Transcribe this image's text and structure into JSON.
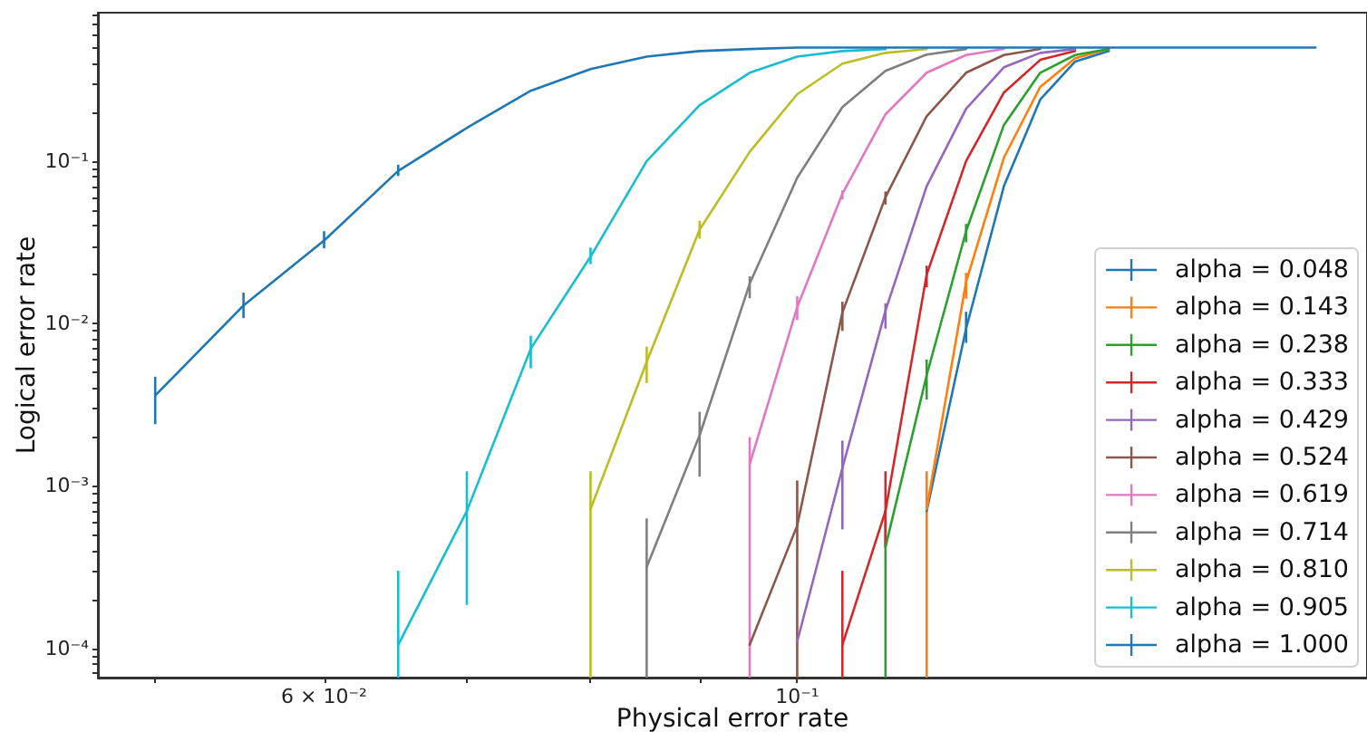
{
  "chart_data": {
    "type": "line",
    "xlabel": "Physical error rate",
    "ylabel": "Logical error rate",
    "log": "xy",
    "legend": "bottom right",
    "marker": "none",
    "line_style": "solid",
    "xlim": [
      0.047,
      0.185
    ],
    "ylim": [
      6.6e-05,
      0.82
    ],
    "xticks": [
      {
        "value": 0.05,
        "label": null
      },
      {
        "value": 0.06,
        "label": "6 × 10⁻²"
      },
      {
        "value": 0.07,
        "label": null
      },
      {
        "value": 0.08,
        "label": null
      },
      {
        "value": 0.09,
        "label": null
      },
      {
        "value": 0.1,
        "label": "10⁻¹"
      }
    ],
    "yticks": [
      {
        "value": 7e-05,
        "label": null
      },
      {
        "value": 8e-05,
        "label": null
      },
      {
        "value": 9e-05,
        "label": null
      },
      {
        "value": 0.0001,
        "label": "10⁻⁴"
      },
      {
        "value": 0.0002,
        "label": null
      },
      {
        "value": 0.0003,
        "label": null
      },
      {
        "value": 0.0004,
        "label": null
      },
      {
        "value": 0.0005,
        "label": null
      },
      {
        "value": 0.0006,
        "label": null
      },
      {
        "value": 0.0007,
        "label": null
      },
      {
        "value": 0.0008,
        "label": null
      },
      {
        "value": 0.0009,
        "label": null
      },
      {
        "value": 0.001,
        "label": "10⁻³"
      },
      {
        "value": 0.002,
        "label": null
      },
      {
        "value": 0.003,
        "label": null
      },
      {
        "value": 0.004,
        "label": null
      },
      {
        "value": 0.005,
        "label": null
      },
      {
        "value": 0.006,
        "label": null
      },
      {
        "value": 0.007,
        "label": null
      },
      {
        "value": 0.008,
        "label": null
      },
      {
        "value": 0.009,
        "label": null
      },
      {
        "value": 0.01,
        "label": "10⁻²"
      },
      {
        "value": 0.02,
        "label": null
      },
      {
        "value": 0.03,
        "label": null
      },
      {
        "value": 0.04,
        "label": null
      },
      {
        "value": 0.05,
        "label": null
      },
      {
        "value": 0.06,
        "label": null
      },
      {
        "value": 0.07,
        "label": null
      },
      {
        "value": 0.08,
        "label": null
      },
      {
        "value": 0.09,
        "label": null
      },
      {
        "value": 0.1,
        "label": "10⁻¹"
      },
      {
        "value": 0.2,
        "label": null
      },
      {
        "value": 0.3,
        "label": null
      },
      {
        "value": 0.4,
        "label": null
      },
      {
        "value": 0.5,
        "label": null
      },
      {
        "value": 0.6,
        "label": null
      },
      {
        "value": 0.7,
        "label": null
      },
      {
        "value": 0.8,
        "label": null
      }
    ],
    "x": [
      0.05,
      0.055,
      0.06,
      0.065,
      0.07,
      0.075,
      0.08,
      0.085,
      0.09,
      0.095,
      0.1,
      0.105,
      0.11,
      0.115,
      0.12,
      0.125,
      0.13,
      0.135,
      0.14,
      0.145,
      0.15,
      0.155,
      0.16,
      0.165,
      0.17,
      0.175
    ],
    "series": [
      {
        "name": "alpha = 0.048",
        "color": "#1f77b4",
        "values": [
          null,
          null,
          null,
          null,
          null,
          null,
          null,
          null,
          null,
          null,
          null,
          null,
          null,
          0.0007,
          0.0093,
          0.07,
          0.239,
          0.41,
          0.476,
          null,
          null,
          null,
          null,
          null,
          null,
          null
        ],
        "errors": [
          null,
          null,
          null,
          null,
          null,
          null,
          null,
          null,
          null,
          null,
          null,
          null,
          null,
          null,
          [
            0.0076,
            0.0118
          ],
          null,
          null,
          null,
          null,
          null,
          null,
          null,
          null,
          null,
          null,
          null
        ]
      },
      {
        "name": "alpha = 0.143",
        "color": "#ff7f0e",
        "values": [
          null,
          null,
          null,
          null,
          null,
          null,
          null,
          null,
          null,
          null,
          null,
          null,
          null,
          0.00072,
          0.018,
          0.105,
          0.286,
          0.43,
          0.49,
          null,
          null,
          null,
          null,
          null,
          null,
          null
        ],
        "errors": [
          null,
          null,
          null,
          null,
          null,
          null,
          null,
          null,
          null,
          null,
          null,
          null,
          null,
          [
            6.6e-05,
            0.00123
          ],
          [
            0.0142,
            0.0205
          ],
          null,
          null,
          null,
          null,
          null,
          null,
          null,
          null,
          null,
          null,
          null
        ]
      },
      {
        "name": "alpha = 0.238",
        "color": "#2ca02c",
        "values": [
          null,
          null,
          null,
          null,
          null,
          null,
          null,
          null,
          null,
          null,
          null,
          null,
          0.00042,
          0.0048,
          0.037,
          0.167,
          0.35,
          0.45,
          0.49,
          null,
          null,
          null,
          null,
          null,
          null,
          null
        ],
        "errors": [
          null,
          null,
          null,
          null,
          null,
          null,
          null,
          null,
          null,
          null,
          null,
          null,
          [
            6.6e-05,
            0.0007
          ],
          [
            0.0034,
            0.006
          ],
          [
            0.0316,
            0.041
          ],
          null,
          null,
          null,
          null,
          null,
          null,
          null,
          null,
          null,
          null,
          null
        ]
      },
      {
        "name": "alpha = 0.333",
        "color": "#d62728",
        "values": [
          null,
          null,
          null,
          null,
          null,
          null,
          null,
          null,
          null,
          null,
          null,
          0.000105,
          0.0007,
          0.02,
          0.1,
          0.264,
          0.42,
          0.476,
          null,
          null,
          null,
          null,
          null,
          null,
          null,
          null
        ],
        "errors": [
          null,
          null,
          null,
          null,
          null,
          null,
          null,
          null,
          null,
          null,
          null,
          [
            6.6e-05,
            0.0003
          ],
          [
            0.00042,
            0.00123
          ],
          [
            0.0167,
            0.0227
          ],
          null,
          null,
          null,
          null,
          null,
          null,
          null,
          null,
          null,
          null,
          null,
          null
        ]
      },
      {
        "name": "alpha = 0.429",
        "color": "#9467bd",
        "values": [
          null,
          null,
          null,
          null,
          null,
          null,
          null,
          null,
          null,
          null,
          0.00011,
          0.00129,
          0.012,
          0.07,
          0.21,
          0.378,
          0.464,
          0.49,
          null,
          null,
          null,
          null,
          null,
          null,
          null,
          null
        ],
        "errors": [
          null,
          null,
          null,
          null,
          null,
          null,
          null,
          null,
          null,
          null,
          null,
          [
            0.00054,
            0.0019
          ],
          [
            0.0093,
            0.0133
          ],
          null,
          null,
          null,
          null,
          null,
          null,
          null,
          null,
          null,
          null,
          null,
          null,
          null
        ]
      },
      {
        "name": "alpha = 0.524",
        "color": "#8c564b",
        "values": [
          null,
          null,
          null,
          null,
          null,
          null,
          null,
          null,
          null,
          0.000105,
          0.00057,
          0.0117,
          0.06,
          0.189,
          0.35,
          0.45,
          0.49,
          null,
          null,
          null,
          null,
          null,
          null,
          null,
          null,
          null
        ],
        "errors": [
          null,
          null,
          null,
          null,
          null,
          null,
          null,
          null,
          null,
          null,
          [
            6.6e-05,
            0.00108
          ],
          [
            0.009,
            0.0136
          ],
          [
            0.054,
            0.065
          ],
          null,
          null,
          null,
          null,
          null,
          null,
          null,
          null,
          null,
          null,
          null,
          null,
          null
        ]
      },
      {
        "name": "alpha = 0.619",
        "color": "#e377c2",
        "values": [
          null,
          null,
          null,
          null,
          null,
          null,
          null,
          null,
          null,
          0.00136,
          0.0126,
          0.063,
          0.194,
          0.35,
          0.45,
          0.49,
          null,
          null,
          null,
          null,
          null,
          null,
          null,
          null,
          null,
          null
        ],
        "errors": [
          null,
          null,
          null,
          null,
          null,
          null,
          null,
          null,
          null,
          [
            6.6e-05,
            0.002
          ],
          [
            0.0105,
            0.0147
          ],
          [
            0.058,
            0.066
          ],
          null,
          null,
          null,
          null,
          null,
          null,
          null,
          null,
          null,
          null,
          null,
          null,
          null,
          null
        ]
      },
      {
        "name": "alpha = 0.714",
        "color": "#7f7f7f",
        "values": [
          null,
          null,
          null,
          null,
          null,
          null,
          null,
          0.000316,
          0.00205,
          0.0176,
          0.079,
          0.215,
          0.359,
          0.453,
          0.49,
          null,
          null,
          null,
          null,
          null,
          null,
          null,
          null,
          null,
          null,
          null
        ],
        "errors": [
          null,
          null,
          null,
          null,
          null,
          null,
          null,
          [
            6.6e-05,
            0.00063
          ],
          [
            0.00114,
            0.00286
          ],
          [
            0.0143,
            0.0195
          ],
          null,
          null,
          null,
          null,
          null,
          null,
          null,
          null,
          null,
          null,
          null,
          null,
          null,
          null,
          null,
          null
        ]
      },
      {
        "name": "alpha = 0.810",
        "color": "#bcbd22",
        "values": [
          null,
          null,
          null,
          null,
          null,
          null,
          0.00072,
          0.0058,
          0.0378,
          0.114,
          0.258,
          0.398,
          0.464,
          0.49,
          null,
          null,
          null,
          null,
          null,
          null,
          null,
          null,
          null,
          null,
          null,
          null
        ],
        "errors": [
          null,
          null,
          null,
          null,
          null,
          null,
          [
            6.6e-05,
            0.00123
          ],
          [
            0.0043,
            0.0072
          ],
          [
            0.0333,
            0.043
          ],
          null,
          null,
          null,
          null,
          null,
          null,
          null,
          null,
          null,
          null,
          null,
          null,
          null,
          null,
          null,
          null,
          null
        ]
      },
      {
        "name": "alpha = 0.905",
        "color": "#17becf",
        "values": [
          null,
          null,
          null,
          0.000105,
          0.0007,
          0.007,
          0.0258,
          0.1,
          0.221,
          0.35,
          0.44,
          0.476,
          0.49,
          null,
          null,
          null,
          null,
          null,
          null,
          null,
          null,
          null,
          null,
          null,
          null,
          null
        ],
        "errors": [
          null,
          null,
          null,
          [
            6.6e-05,
            0.0003
          ],
          [
            0.000185,
            0.00123
          ],
          [
            0.0053,
            0.0084
          ],
          [
            0.0232,
            0.0293
          ],
          null,
          null,
          null,
          null,
          null,
          null,
          null,
          null,
          null,
          null,
          null,
          null,
          null,
          null,
          null,
          null,
          null,
          null,
          null
        ]
      },
      {
        "name": "alpha = 1.000",
        "color": "#1f77b4",
        "values": [
          0.0036,
          0.0129,
          0.0324,
          0.087,
          0.16,
          0.271,
          0.369,
          0.44,
          0.476,
          0.49,
          0.5,
          0.5,
          0.5,
          0.5,
          0.5,
          0.5,
          0.5,
          0.5,
          0.5,
          0.5,
          0.5,
          0.5,
          0.5,
          0.5,
          0.5,
          0.5
        ],
        "errors": [
          [
            0.0024,
            0.0047
          ],
          [
            0.0108,
            0.0155
          ],
          [
            0.029,
            0.037
          ],
          [
            0.081,
            0.095
          ],
          null,
          null,
          null,
          null,
          null,
          null,
          null,
          null,
          null,
          null,
          null,
          null,
          null,
          null,
          null,
          null,
          null,
          null,
          null,
          null,
          null,
          null
        ]
      }
    ]
  }
}
